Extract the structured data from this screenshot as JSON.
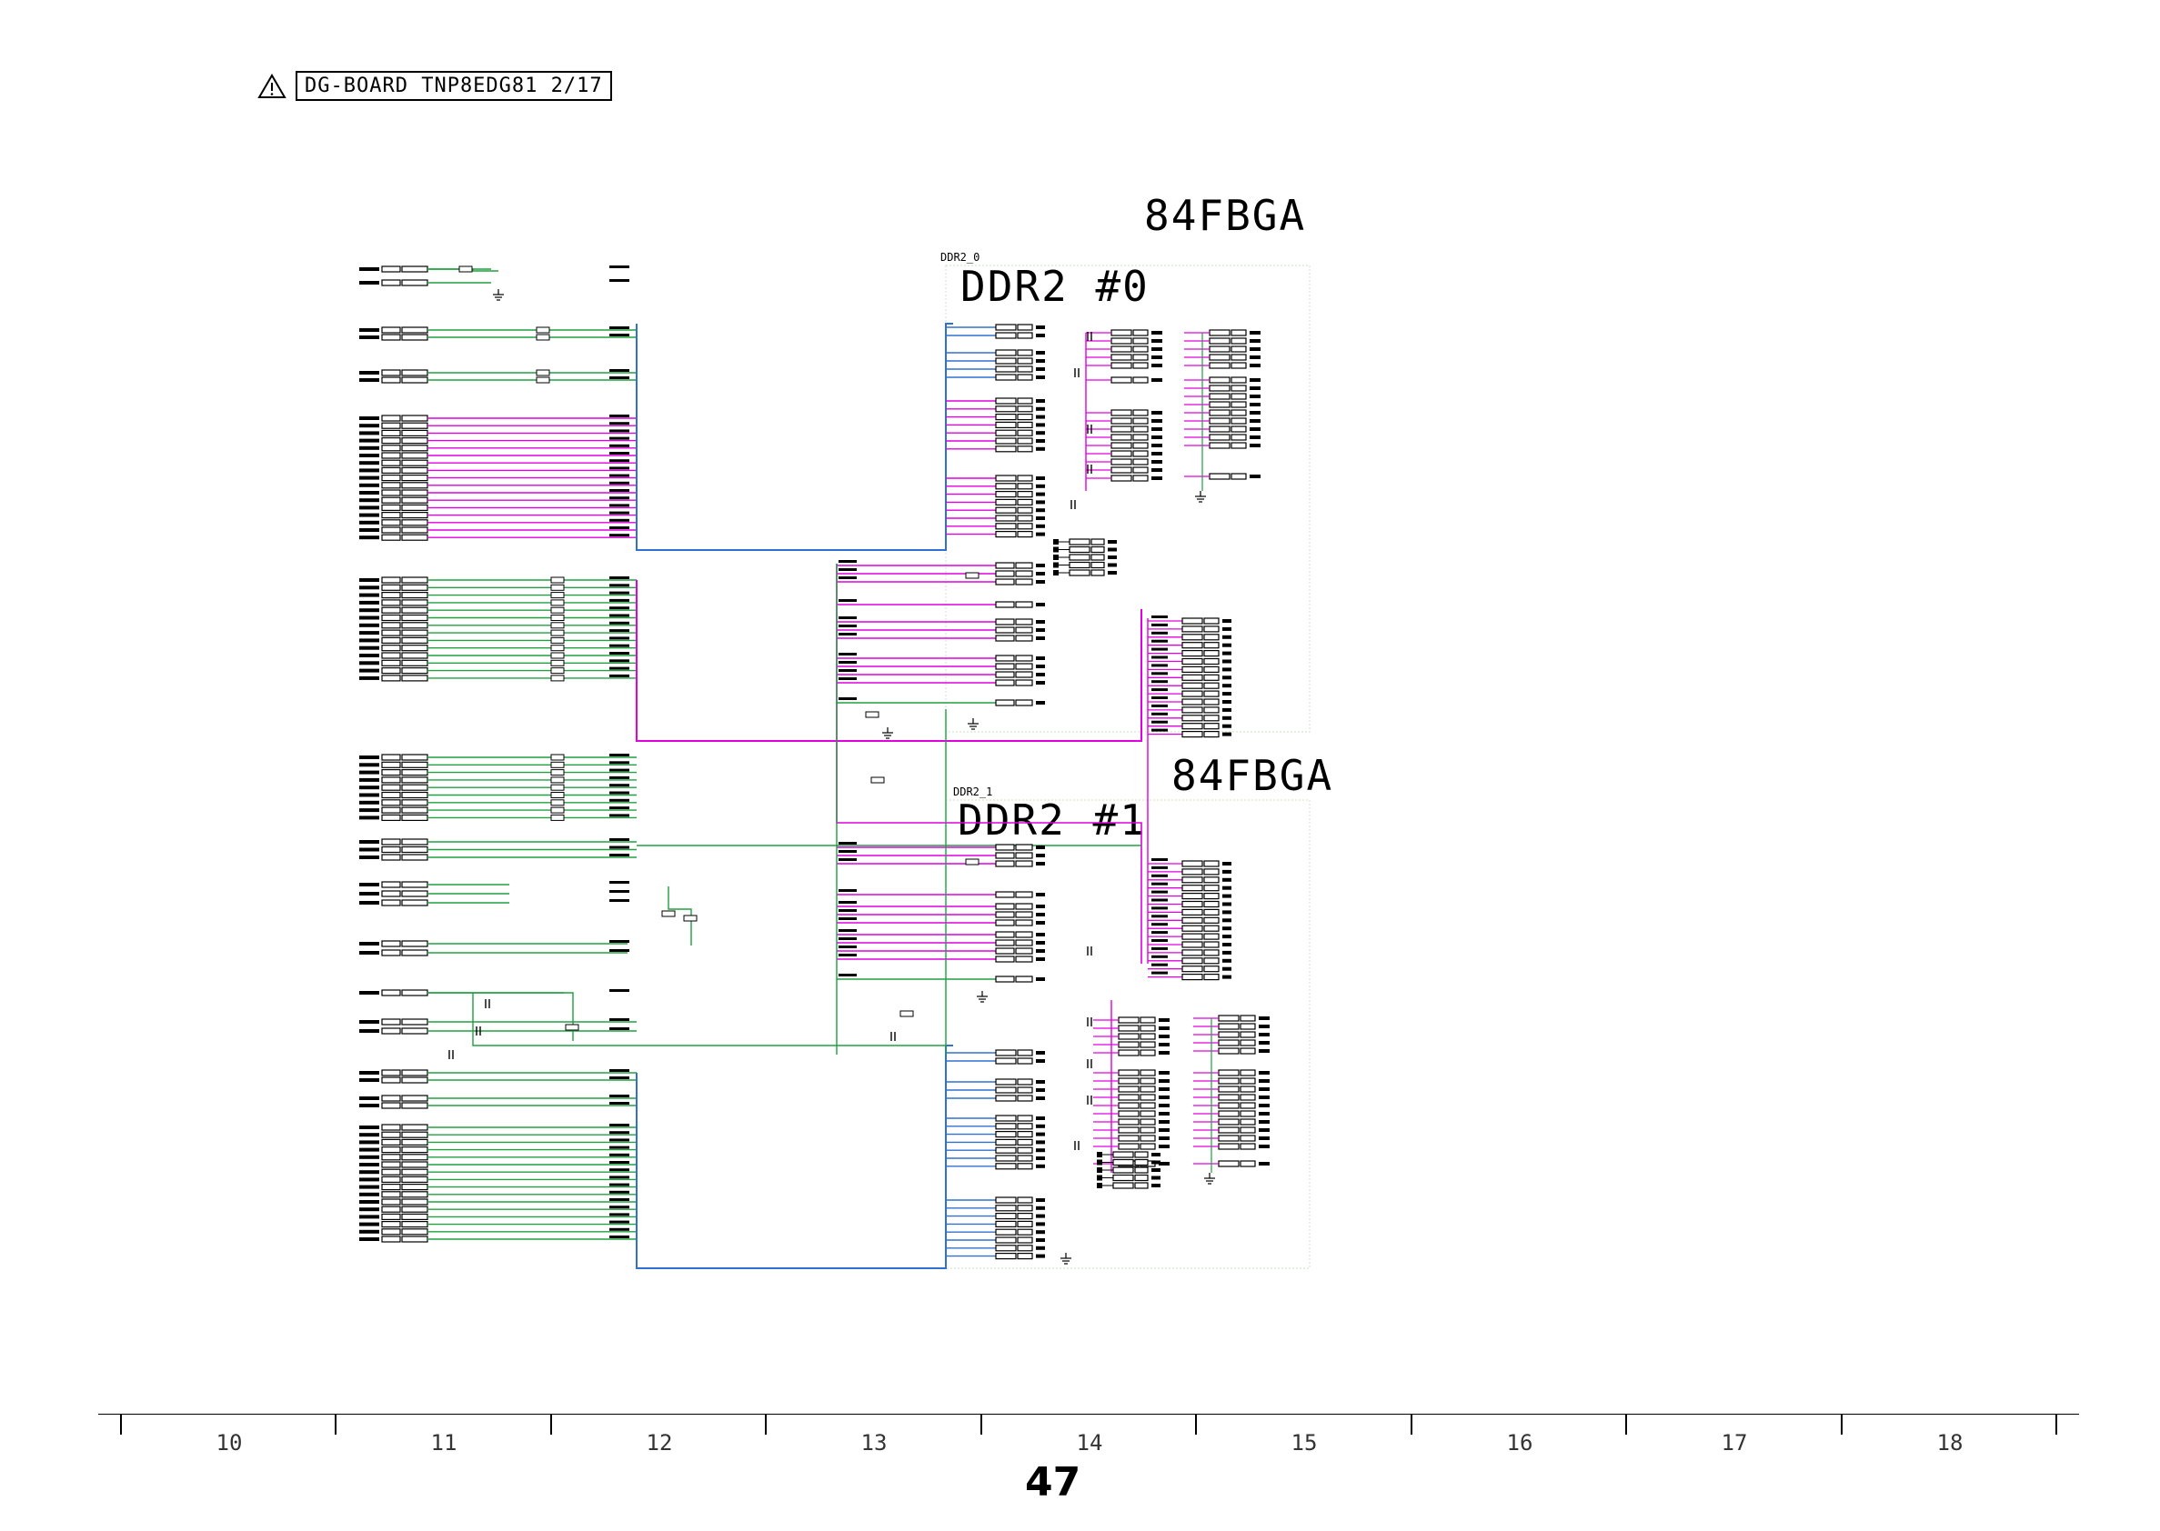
{
  "header": {
    "warning_icon": "warning-triangle-icon",
    "title": "DG-BOARD TNP8EDG81 2/17"
  },
  "chips": [
    {
      "package": "84FBGA",
      "ref": "DDR2_0",
      "label": "DDR2 #0"
    },
    {
      "package": "84FBGA",
      "ref": "DDR2_1",
      "label": "DDR2 #1"
    }
  ],
  "ruler": {
    "columns": [
      "10",
      "11",
      "12",
      "13",
      "14",
      "15",
      "16",
      "17",
      "18"
    ]
  },
  "page_number": "47",
  "colors": {
    "address_bus": "#e000e0",
    "control_bus": "#20a040",
    "data_bus": "#3070d0",
    "ink": "#000000"
  }
}
